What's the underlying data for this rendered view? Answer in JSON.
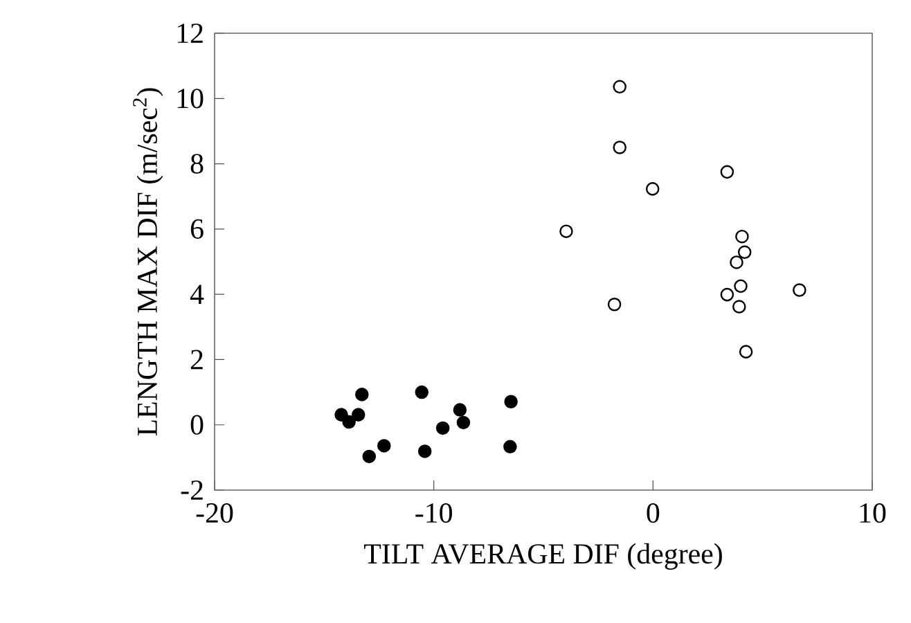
{
  "chart_data": {
    "type": "scatter",
    "xlabel": "TILT AVERAGE DIF (degree)",
    "ylabel": "LENGTH MAX DIF (m/sec$^{2}$)",
    "xlim": [
      -20,
      10
    ],
    "xticks": [
      -20,
      -10,
      0,
      10
    ],
    "ylim": [
      -2,
      12
    ],
    "yticks": [
      -2,
      0,
      2,
      4,
      6,
      8,
      10,
      12
    ],
    "marker": "circle",
    "grid": false,
    "series": [
      {
        "color": "#ffffff",
        "x": [
          -1.52,
          -1.52,
          3.38,
          -0.02,
          -3.96,
          4.06,
          4.18,
          3.81,
          4.0,
          3.38,
          3.93,
          6.68,
          -1.76,
          4.24
        ],
        "values": [
          10.36,
          8.5,
          7.75,
          7.23,
          5.93,
          5.77,
          5.29,
          4.98,
          4.25,
          3.99,
          3.62,
          4.13,
          3.69,
          2.24
        ]
      },
      {
        "color": "#000000",
        "x": [
          -13.28,
          -10.55,
          -6.48,
          -8.81,
          -8.65,
          -9.59,
          -14.22,
          -13.44,
          -13.87,
          -12.27,
          -12.95,
          -10.41,
          -6.52
        ],
        "values": [
          0.93,
          1.0,
          0.71,
          0.46,
          0.07,
          -0.1,
          0.31,
          0.31,
          0.09,
          -0.64,
          -0.97,
          -0.81,
          -0.67
        ]
      }
    ]
  }
}
